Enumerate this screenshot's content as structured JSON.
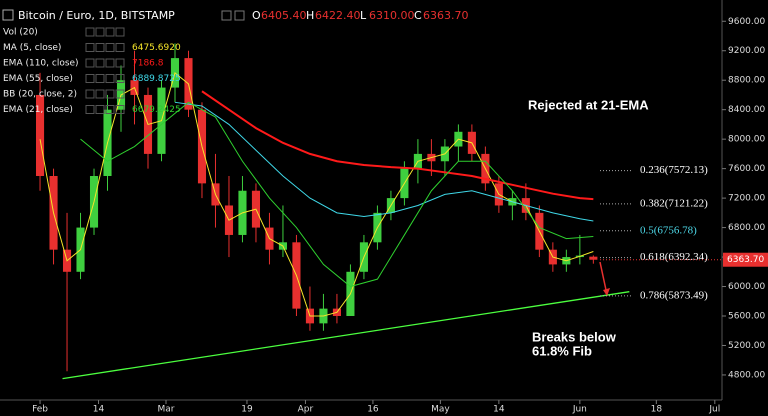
{
  "chart_data": {
    "type": "candlestick",
    "title": "Bitcoin / Euro, 1D, BITSTAMP",
    "ohlc_header": [
      {
        "key": "O",
        "text": "6405.40"
      },
      {
        "key": "H",
        "text": "6422.40"
      },
      {
        "key": "L",
        "text": "6310.00"
      },
      {
        "key": "C",
        "text": "6363.70"
      }
    ],
    "indicators": [
      "Vol (20)",
      "BB (20, close, 2)"
    ],
    "x": [
      0,
      3,
      6,
      9,
      12,
      15,
      18,
      21,
      24,
      27,
      30,
      33,
      36,
      39,
      42,
      45,
      48,
      51,
      54,
      57,
      60,
      63,
      66,
      69,
      72,
      75,
      78,
      81,
      84,
      87,
      90,
      93,
      96,
      99,
      102,
      105,
      108,
      111,
      114,
      117,
      120,
      123
    ],
    "open": [
      8600,
      7500,
      6500,
      6200,
      6800,
      7500,
      8400,
      8800,
      8600,
      7800,
      8700,
      9100,
      8400,
      7400,
      7100,
      6700,
      7300,
      6800,
      6500,
      6600,
      5700,
      5500,
      5700,
      5600,
      6200,
      6600,
      7000,
      7200,
      7600,
      7800,
      7700,
      7900,
      8100,
      7800,
      7400,
      7100,
      7200,
      7000,
      6500,
      6300,
      6400,
      6405.4
    ],
    "high": [
      8900,
      7600,
      7000,
      7000,
      7600,
      8600,
      9000,
      9200,
      8700,
      8800,
      9300,
      9200,
      8500,
      7800,
      7500,
      7500,
      7400,
      7000,
      7100,
      6700,
      6000,
      5900,
      5900,
      6300,
      6700,
      7100,
      7300,
      7700,
      8000,
      8000,
      8000,
      8200,
      8200,
      7900,
      7500,
      7300,
      7400,
      7100,
      6600,
      6500,
      6700,
      6422.4
    ],
    "low": [
      7300,
      6300,
      4850,
      6100,
      6700,
      7300,
      8100,
      8200,
      7600,
      7700,
      8500,
      8300,
      7200,
      6800,
      6400,
      6600,
      6600,
      6300,
      6400,
      5600,
      5400,
      5400,
      5500,
      5600,
      6100,
      6500,
      6900,
      7100,
      7400,
      7500,
      7500,
      7700,
      7700,
      7300,
      7000,
      6900,
      6900,
      6400,
      6200,
      6200,
      6300,
      6310
    ],
    "close": [
      7500,
      6500,
      6200,
      6800,
      7500,
      8400,
      8800,
      8600,
      7800,
      8700,
      9100,
      8400,
      7400,
      7100,
      6700,
      7300,
      6800,
      6500,
      6600,
      5700,
      5500,
      5700,
      5600,
      6200,
      6600,
      7000,
      7200,
      7600,
      7800,
      7700,
      7900,
      8100,
      7800,
      7400,
      7100,
      7200,
      7000,
      6500,
      6300,
      6400,
      6420,
      6363.7
    ],
    "up_color": "#3fcf3f",
    "down_color": "#e8302f",
    "series": [
      {
        "name": "MA (5, close)",
        "last": "6475.6920",
        "color": "#f5e52a",
        "values": [
          8000,
          7000,
          6350,
          6500,
          7150,
          7950,
          8600,
          8700,
          8200,
          8250,
          8900,
          8750,
          7900,
          7250,
          6900,
          7000,
          7050,
          6650,
          6550,
          6150,
          5600,
          5600,
          5650,
          5900,
          6400,
          6800,
          7100,
          7400,
          7700,
          7750,
          7800,
          8000,
          7950,
          7600,
          7250,
          7150,
          7100,
          6750,
          6400,
          6350,
          6410,
          6475.692
        ]
      },
      {
        "name": "EMA (110, close)",
        "last": "7186.8",
        "color": "#ff1a1a",
        "x": [
          36,
          42,
          48,
          54,
          60,
          66,
          72,
          78,
          84,
          90,
          96,
          102,
          108,
          114,
          120,
          123
        ],
        "values": [
          8650,
          8400,
          8150,
          7950,
          7800,
          7700,
          7650,
          7620,
          7600,
          7550,
          7500,
          7420,
          7340,
          7260,
          7200,
          7186.8
        ]
      },
      {
        "name": "EMA (55, close)",
        "last": "6889.8725",
        "color": "#3fd8e8",
        "x": [
          30,
          36,
          42,
          48,
          54,
          60,
          66,
          72,
          78,
          84,
          90,
          96,
          102,
          108,
          114,
          120,
          123
        ],
        "values": [
          8500,
          8450,
          8200,
          7850,
          7500,
          7200,
          7000,
          6950,
          7000,
          7100,
          7250,
          7300,
          7200,
          7100,
          7000,
          6920,
          6889.8725
        ]
      },
      {
        "name": "EMA (21, close)",
        "last": "6679.2425",
        "color": "#2fd02f",
        "x": [
          9,
          15,
          21,
          27,
          33,
          39,
          45,
          51,
          57,
          63,
          69,
          75,
          81,
          87,
          93,
          99,
          105,
          111,
          117,
          123
        ],
        "values": [
          8000,
          7700,
          7900,
          8200,
          8500,
          8300,
          7700,
          7200,
          6800,
          6300,
          6000,
          6100,
          6700,
          7300,
          7700,
          7700,
          7300,
          6800,
          6650,
          6679.2425
        ]
      }
    ],
    "trendline": {
      "x": [
        5,
        131
      ],
      "values": [
        4750,
        5930
      ],
      "color": "#4cff3f"
    },
    "fib_levels": [
      {
        "value": 7572.13,
        "label": "0.236(7572.13)",
        "color": "#ffffff"
      },
      {
        "value": 7121.22,
        "label": "0.382(7121.22)",
        "color": "#ffffff"
      },
      {
        "value": 6756.78,
        "label": "0.5(6756.78)",
        "color": "#4dd8e8"
      },
      {
        "value": 6392.34,
        "label": "0.618(6392.34)",
        "color": "#ffffff"
      },
      {
        "value": 5873.49,
        "label": "0.786(5873.49)",
        "color": "#ffffff"
      }
    ],
    "last_price": {
      "value": 6363.7,
      "label": "6363.70"
    },
    "annotations": [
      "Rejected at 21-EMA",
      "Breaks below",
      "61.8% Fib"
    ],
    "xlim": [
      -8.9,
      151.6
    ],
    "ylim": [
      4460,
      9780
    ],
    "xticks": [
      {
        "value": 0,
        "label": "Feb"
      },
      {
        "value": 13,
        "label": "14"
      },
      {
        "value": 28,
        "label": "Mar"
      },
      {
        "value": 46,
        "label": "19"
      },
      {
        "value": 59,
        "label": "Apr"
      },
      {
        "value": 74,
        "label": "16"
      },
      {
        "value": 89,
        "label": "May"
      },
      {
        "value": 102,
        "label": "14"
      },
      {
        "value": 120,
        "label": "Jun"
      },
      {
        "value": 137,
        "label": "18"
      },
      {
        "value": 150,
        "label": "Jul"
      }
    ],
    "yticks": [
      {
        "value": 4800,
        "label": "4800.00"
      },
      {
        "value": 5200,
        "label": "5200.00"
      },
      {
        "value": 5600,
        "label": "5600.00"
      },
      {
        "value": 6000,
        "label": "6000.00"
      },
      {
        "value": 6400,
        "label": "6400.00"
      },
      {
        "value": 6800,
        "label": "6800.00"
      },
      {
        "value": 7200,
        "label": "7200.00"
      },
      {
        "value": 7600,
        "label": "7600.00"
      },
      {
        "value": 8000,
        "label": "8000.00"
      },
      {
        "value": 8400,
        "label": "8400.00"
      },
      {
        "value": 8800,
        "label": "8800.00"
      },
      {
        "value": 9200,
        "label": "9200.00"
      },
      {
        "value": 9600,
        "label": "9600.00"
      }
    ]
  }
}
